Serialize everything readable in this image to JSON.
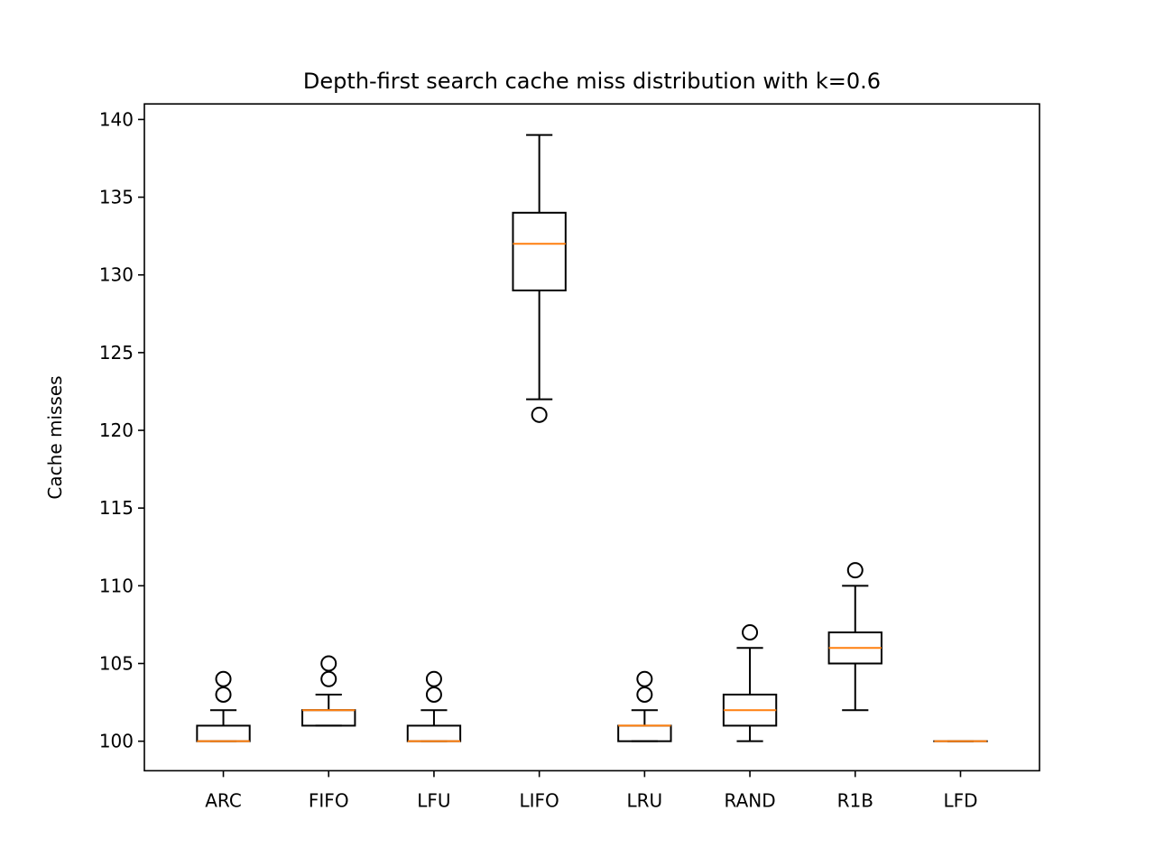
{
  "chart_data": {
    "type": "box",
    "title": "Depth-first search cache miss distribution with k=0.6",
    "xlabel": "",
    "ylabel": "Cache misses",
    "ylim": [
      98.1,
      141
    ],
    "yticks": [
      100,
      105,
      110,
      115,
      120,
      125,
      130,
      135,
      140
    ],
    "categories": [
      "ARC",
      "FIFO",
      "LFU",
      "LIFO",
      "LRU",
      "RAND",
      "R1B",
      "LFD"
    ],
    "grid": false,
    "colors": {
      "box": "#000000",
      "median": "#ff7f0e"
    },
    "boxes": [
      {
        "category": "ARC",
        "whisker_low": 100,
        "q1": 100,
        "median": 100,
        "q3": 101,
        "whisker_high": 102,
        "outliers": [
          103,
          104
        ]
      },
      {
        "category": "FIFO",
        "whisker_low": 101,
        "q1": 101,
        "median": 102,
        "q3": 102,
        "whisker_high": 103,
        "outliers": [
          104,
          105
        ]
      },
      {
        "category": "LFU",
        "whisker_low": 100,
        "q1": 100,
        "median": 100,
        "q3": 101,
        "whisker_high": 102,
        "outliers": [
          103,
          104
        ]
      },
      {
        "category": "LIFO",
        "whisker_low": 122,
        "q1": 129,
        "median": 132,
        "q3": 134,
        "whisker_high": 139,
        "outliers": [
          121
        ]
      },
      {
        "category": "LRU",
        "whisker_low": 100,
        "q1": 100,
        "median": 101,
        "q3": 101,
        "whisker_high": 102,
        "outliers": [
          103,
          104
        ]
      },
      {
        "category": "RAND",
        "whisker_low": 100,
        "q1": 101,
        "median": 102,
        "q3": 103,
        "whisker_high": 106,
        "outliers": [
          107
        ]
      },
      {
        "category": "R1B",
        "whisker_low": 102,
        "q1": 105,
        "median": 106,
        "q3": 107,
        "whisker_high": 110,
        "outliers": [
          111
        ]
      },
      {
        "category": "LFD",
        "whisker_low": 100,
        "q1": 100,
        "median": 100,
        "q3": 100,
        "whisker_high": 100,
        "outliers": []
      }
    ]
  }
}
